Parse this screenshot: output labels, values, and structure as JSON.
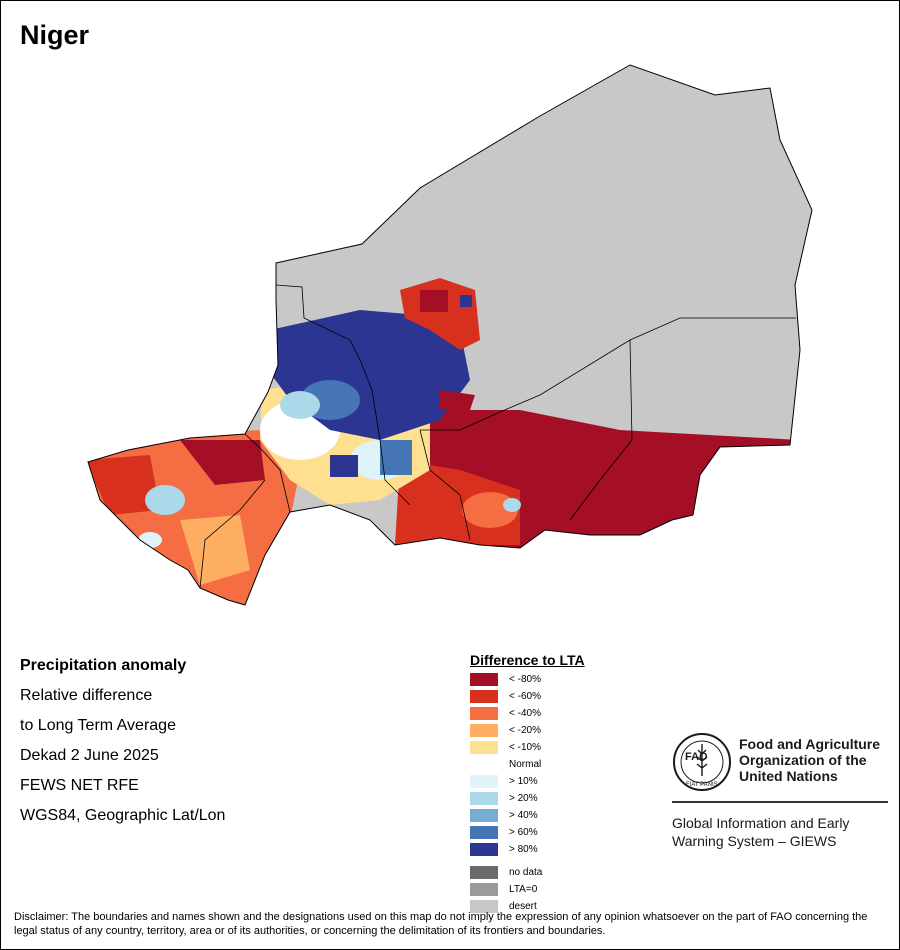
{
  "map": {
    "title": "Niger",
    "subject": "Precipitation anomaly",
    "details": [
      "Relative difference",
      "to Long Term Average",
      "Dekad 2 June 2025",
      "FEWS NET RFE",
      "WGS84, Geographic Lat/Lon"
    ]
  },
  "legend": {
    "title": "Difference to LTA",
    "classes": [
      {
        "label": "< -80%",
        "color": "#a50f26"
      },
      {
        "label": "< -60%",
        "color": "#d7301f"
      },
      {
        "label": "< -40%",
        "color": "#f46d43"
      },
      {
        "label": "< -20%",
        "color": "#fdae61"
      },
      {
        "label": "< -10%",
        "color": "#fee090"
      },
      {
        "label": "Normal",
        "color": "#ffffff"
      },
      {
        "label": "> 10%",
        "color": "#e0f3f8"
      },
      {
        "label": "> 20%",
        "color": "#abd9e9"
      },
      {
        "label": "> 40%",
        "color": "#74add1"
      },
      {
        "label": "> 60%",
        "color": "#4575b4"
      },
      {
        "label": "> 80%",
        "color": "#2c3591"
      }
    ],
    "extra": [
      {
        "label": "no data",
        "color": "#6b6b6b"
      },
      {
        "label": "LTA=0",
        "color": "#9a9a9a"
      },
      {
        "label": "desert",
        "color": "#c8c8c8"
      }
    ]
  },
  "org": {
    "logo_text": "FAO",
    "logo_motto": "FIAT PANIS",
    "name_lines": [
      "Food and Agriculture",
      "Organization of the",
      "United Nations"
    ],
    "system_lines": [
      "Global Information and Early",
      "Warning System – GIEWS"
    ]
  },
  "disclaimer": "Disclaimer: The boundaries and names shown and the designations used on this map do not imply the expression of any opinion whatsoever on the part of FAO concerning the legal status of any country, territory, area or of its authorities, or concerning the delimitation of its frontiers and boundaries."
}
